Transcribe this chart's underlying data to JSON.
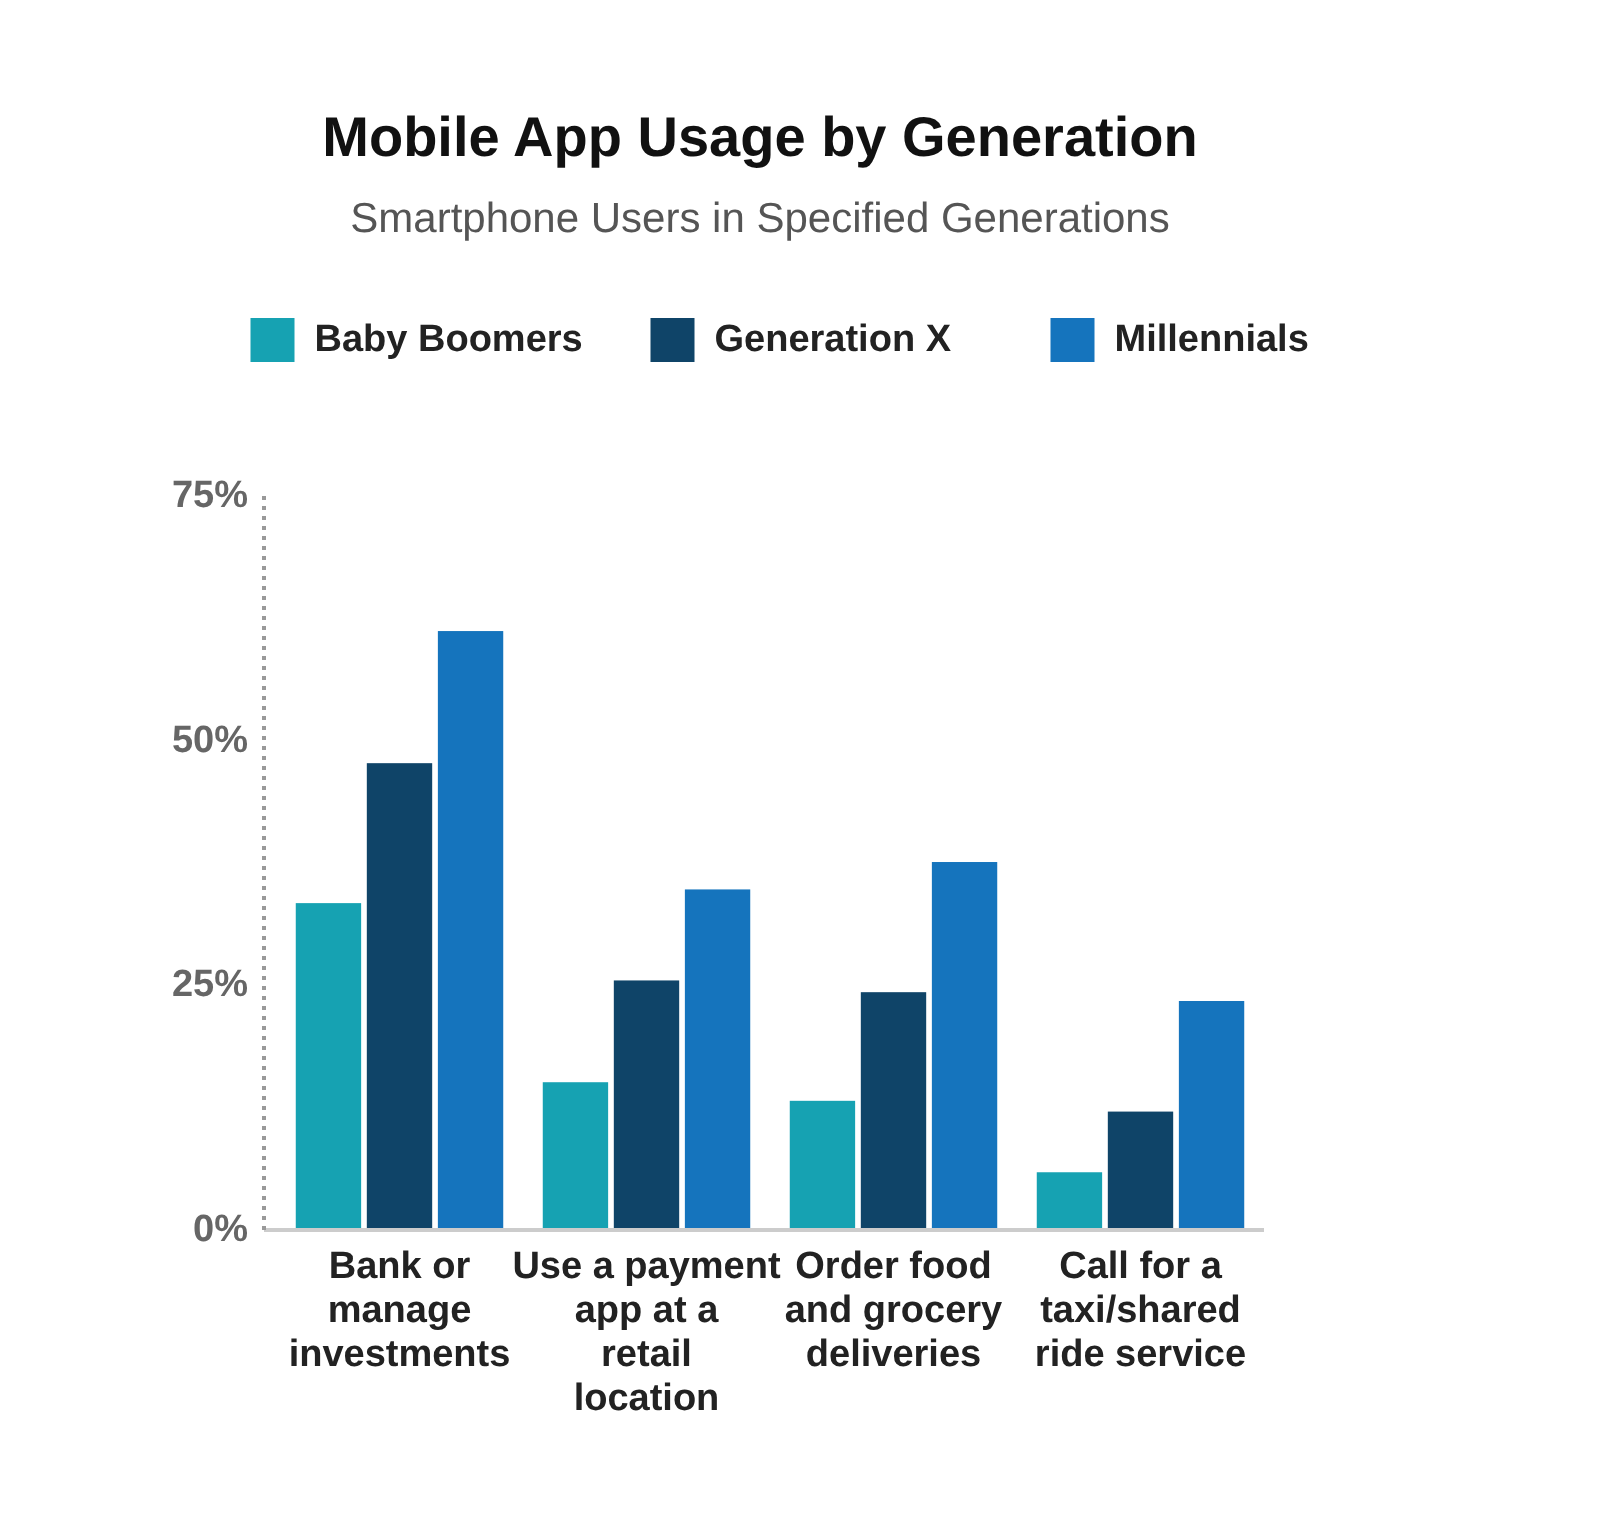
{
  "chart_data": {
    "type": "bar",
    "title": "Mobile App Usage by Generation",
    "subtitle": "Smartphone Users in Specified Generations",
    "categories": [
      "Bank or manage investments",
      "Use a payment app at a retail location",
      "Order food and grocery deliveries",
      "Call for a taxi/shared ride service"
    ],
    "series": [
      {
        "name": "Baby Boomers",
        "color": "#16a2b2",
        "values": [
          33.4,
          15.1,
          13.2,
          5.9
        ]
      },
      {
        "name": "Generation X",
        "color": "#0f4468",
        "values": [
          47.7,
          25.5,
          24.3,
          12.1
        ]
      },
      {
        "name": "Millennials",
        "color": "#1574bd",
        "values": [
          61.2,
          34.8,
          37.6,
          23.4
        ]
      }
    ],
    "ylim": [
      0,
      75
    ],
    "yticks": [
      {
        "value": 0,
        "label": "0%"
      },
      {
        "value": 25,
        "label": "25%"
      },
      {
        "value": 50,
        "label": "50%"
      },
      {
        "value": 75,
        "label": "75%"
      }
    ],
    "grid": false,
    "legend": "top"
  }
}
